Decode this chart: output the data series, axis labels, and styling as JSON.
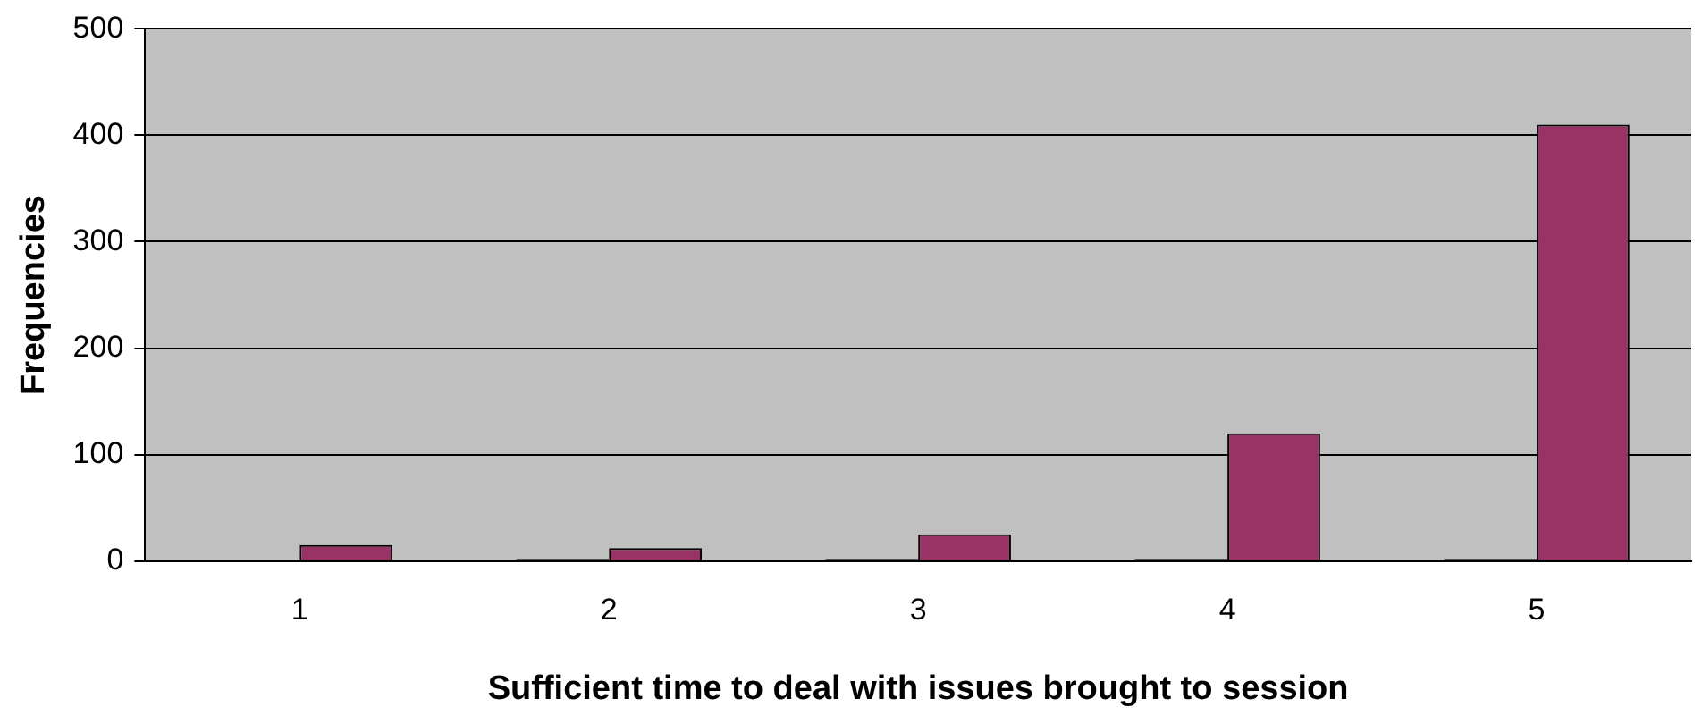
{
  "chart_data": {
    "type": "bar",
    "xlabel": "Sufficient time to deal with issues brought to session",
    "ylabel": "Frequencies",
    "categories": [
      "1",
      "2",
      "3",
      "4",
      "5"
    ],
    "series": [
      {
        "color": "#000000",
        "values": [
          0,
          2,
          2,
          2,
          2
        ]
      },
      {
        "color": "#993366",
        "values": [
          15,
          12,
          25,
          120,
          410
        ]
      }
    ],
    "ylim": [
      0,
      500
    ],
    "yticks": [
      0,
      100,
      200,
      300,
      400,
      500
    ],
    "grid": "y",
    "legend": false
  }
}
